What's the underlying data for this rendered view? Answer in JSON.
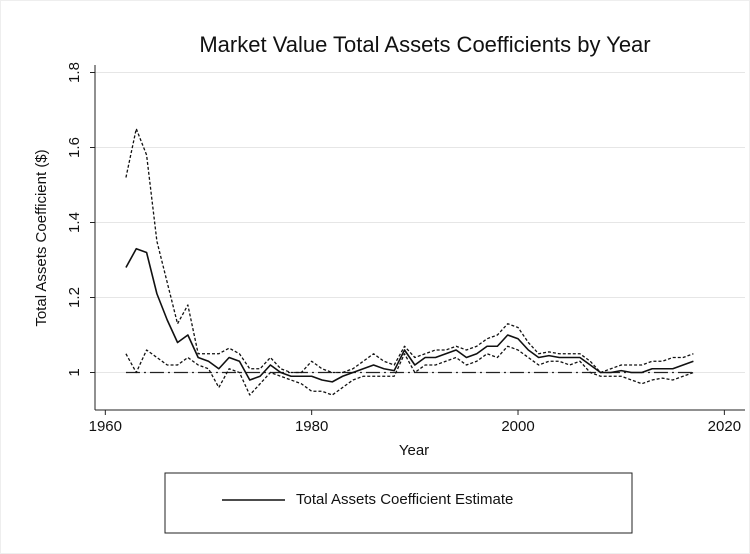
{
  "chart_data": {
    "type": "line",
    "title": "Market Value Total Assets Coefficients by Year",
    "x_label": "Year",
    "y_label": "Total Assets Coefficient ($)",
    "x": [
      1962,
      1963,
      1964,
      1965,
      1966,
      1967,
      1968,
      1969,
      1970,
      1971,
      1972,
      1973,
      1974,
      1975,
      1976,
      1977,
      1978,
      1979,
      1980,
      1981,
      1982,
      1983,
      1984,
      1985,
      1986,
      1987,
      1988,
      1989,
      1990,
      1991,
      1992,
      1993,
      1994,
      1995,
      1996,
      1997,
      1998,
      1999,
      2000,
      2001,
      2002,
      2003,
      2004,
      2005,
      2006,
      2007,
      2008,
      2009,
      2010,
      2011,
      2012,
      2013,
      2014,
      2015,
      2016,
      2017
    ],
    "series": [
      {
        "name": "Total Assets Coefficient Estimate",
        "color": "#111111",
        "dashed": false,
        "values": [
          1.28,
          1.33,
          1.32,
          1.21,
          1.14,
          1.08,
          1.1,
          1.04,
          1.03,
          1.01,
          1.04,
          1.03,
          0.98,
          0.99,
          1.02,
          1.0,
          0.99,
          0.99,
          0.99,
          0.98,
          0.975,
          0.99,
          1.0,
          1.01,
          1.02,
          1.01,
          1.005,
          1.06,
          1.02,
          1.04,
          1.04,
          1.05,
          1.06,
          1.04,
          1.05,
          1.07,
          1.07,
          1.1,
          1.09,
          1.06,
          1.04,
          1.045,
          1.04,
          1.04,
          1.04,
          1.02,
          1.0,
          1.0,
          1.005,
          1.0,
          1.0,
          1.01,
          1.01,
          1.01,
          1.02,
          1.03
        ]
      },
      {
        "color": "#111111",
        "dashed": true,
        "values": [
          1.52,
          1.65,
          1.58,
          1.35,
          1.24,
          1.13,
          1.18,
          1.05,
          1.05,
          1.05,
          1.065,
          1.05,
          1.01,
          1.01,
          1.04,
          1.01,
          1.0,
          1.0,
          1.03,
          1.01,
          1.0,
          1.0,
          1.01,
          1.03,
          1.05,
          1.03,
          1.02,
          1.07,
          1.04,
          1.05,
          1.06,
          1.06,
          1.07,
          1.06,
          1.07,
          1.09,
          1.1,
          1.13,
          1.12,
          1.08,
          1.05,
          1.055,
          1.05,
          1.05,
          1.05,
          1.03,
          1.0,
          1.01,
          1.02,
          1.02,
          1.02,
          1.03,
          1.03,
          1.04,
          1.04,
          1.05
        ]
      },
      {
        "color": "#111111",
        "dashed": true,
        "values": [
          1.05,
          1.0,
          1.06,
          1.04,
          1.02,
          1.02,
          1.04,
          1.02,
          1.01,
          0.96,
          1.01,
          1.0,
          0.94,
          0.97,
          1.0,
          0.99,
          0.98,
          0.97,
          0.95,
          0.95,
          0.94,
          0.96,
          0.98,
          0.99,
          0.99,
          0.99,
          0.99,
          1.05,
          1.0,
          1.02,
          1.02,
          1.03,
          1.04,
          1.02,
          1.03,
          1.05,
          1.04,
          1.07,
          1.06,
          1.04,
          1.02,
          1.03,
          1.03,
          1.02,
          1.03,
          1.0,
          0.99,
          0.99,
          0.99,
          0.98,
          0.97,
          0.98,
          0.985,
          0.98,
          0.99,
          1.0
        ]
      }
    ],
    "reference_line": 1,
    "xlim": [
      1959,
      2022
    ],
    "ylim": [
      0.9,
      1.82
    ],
    "xticks": [
      1960,
      1980,
      2000,
      2020
    ],
    "yticks": [
      1,
      1.2,
      1.4,
      1.6,
      1.8
    ],
    "grid": true,
    "legend": "bottom"
  }
}
